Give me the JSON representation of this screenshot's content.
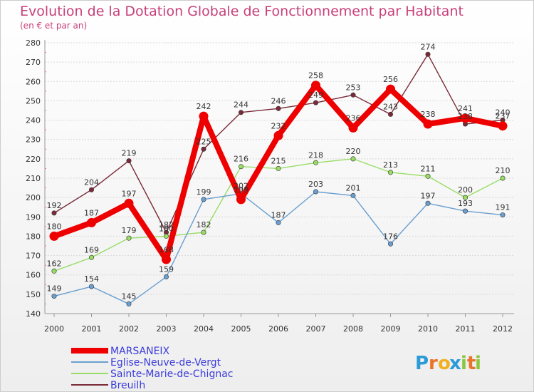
{
  "chart_data": {
    "type": "line",
    "title": "Evolution de la Dotation Globale de Fonctionnement par Habitant",
    "subtitle": "(en € et par an)",
    "xlabel": "",
    "ylabel": "",
    "categories": [
      "2000",
      "2001",
      "2002",
      "2003",
      "2004",
      "2005",
      "2006",
      "2007",
      "2008",
      "2009",
      "2010",
      "2011",
      "2012"
    ],
    "y_ticks": [
      140,
      150,
      160,
      170,
      180,
      190,
      200,
      210,
      220,
      230,
      240,
      250,
      260,
      270,
      280
    ],
    "ylim": [
      140,
      280
    ],
    "grid": "horizontal",
    "legend_position": "bottom-left",
    "series": [
      {
        "name": "MARSANEIX",
        "color": "#ee0000",
        "values": [
          180,
          187,
          197,
          168,
          242,
          199,
          232,
          258,
          236,
          256,
          238,
          241,
          237
        ]
      },
      {
        "name": "Eglise-Neuve-de-Vergt",
        "color": "#6a9fd0",
        "values": [
          149,
          154,
          145,
          159,
          199,
          202,
          187,
          203,
          201,
          176,
          197,
          193,
          191
        ]
      },
      {
        "name": "Sainte-Marie-de-Chignac",
        "color": "#99dd66",
        "values": [
          162,
          169,
          179,
          180,
          182,
          216,
          215,
          218,
          220,
          213,
          211,
          200,
          210
        ]
      },
      {
        "name": "Breuilh",
        "color": "#7a2a38",
        "values": [
          192,
          204,
          219,
          182,
          225,
          244,
          246,
          249,
          253,
          243,
          274,
          238,
          240
        ]
      }
    ]
  },
  "brand": {
    "letters": [
      "P",
      "r",
      "o",
      "x",
      "i",
      "t",
      "i"
    ],
    "colors": [
      "#2a9ad8",
      "#e8742a",
      "#f0b020",
      "#2a9ad8",
      "#8cc63f",
      "#e8742a",
      "#8cc63f"
    ]
  }
}
